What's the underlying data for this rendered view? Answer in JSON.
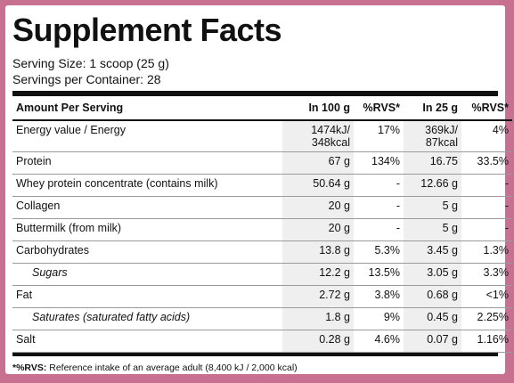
{
  "title": "Supplement Facts",
  "serving_size": "Serving Size: 1 scoop (25 g)",
  "servings_per_container": "Servings per Container: 28",
  "headers": [
    "Amount Per Serving",
    "In 100 g",
    "%RVS*",
    "In 25 g",
    "%RVS*"
  ],
  "rows": [
    {
      "name": "Energy value / Energy",
      "v100": "1474kJ/\n348kcal",
      "rvs100": "17%",
      "v25": "369kJ/\n87kcal",
      "rvs25": "4%",
      "sub": false
    },
    {
      "name": "Protein",
      "v100": "67 g",
      "rvs100": "134%",
      "v25": "16.75",
      "rvs25": "33.5%",
      "sub": false
    },
    {
      "name": "Whey protein concentrate (contains milk)",
      "v100": "50.64 g",
      "rvs100": "-",
      "v25": "12.66 g",
      "rvs25": "-",
      "sub": false
    },
    {
      "name": "Collagen",
      "v100": "20 g",
      "rvs100": "-",
      "v25": "5 g",
      "rvs25": "-",
      "sub": false
    },
    {
      "name": "Buttermilk (from milk)",
      "v100": "20 g",
      "rvs100": "-",
      "v25": "5 g",
      "rvs25": "-",
      "sub": false
    },
    {
      "name": "Carbohydrates",
      "v100": "13.8 g",
      "rvs100": "5.3%",
      "v25": "3.45 g",
      "rvs25": "1.3%",
      "sub": false
    },
    {
      "name": "Sugars",
      "v100": "12.2 g",
      "rvs100": "13.5%",
      "v25": "3.05 g",
      "rvs25": "3.3%",
      "sub": true
    },
    {
      "name": "Fat",
      "v100": "2.72 g",
      "rvs100": "3.8%",
      "v25": "0.68 g",
      "rvs25": "<1%",
      "sub": false
    },
    {
      "name": "Saturates (saturated fatty acids)",
      "v100": "1.8 g",
      "rvs100": "9%",
      "v25": "0.45 g",
      "rvs25": "2.25%",
      "sub": true
    },
    {
      "name": "Salt",
      "v100": "0.28 g",
      "rvs100": "4.6%",
      "v25": "0.07 g",
      "rvs25": "1.16%",
      "sub": false
    }
  ],
  "footnote_label": "*%RVS:",
  "footnote_text": " Reference intake of an average adult (8,400 kJ / 2,000 kcal)"
}
